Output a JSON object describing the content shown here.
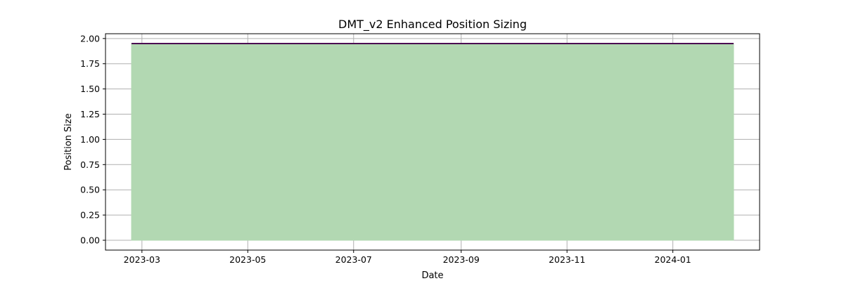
{
  "chart_data": {
    "type": "area",
    "title": "DMT_v2 Enhanced Position Sizing",
    "xlabel": "Date",
    "ylabel": "Position Size",
    "x_range": [
      "2023-02-08",
      "2024-02-20"
    ],
    "ylim": [
      -0.0975,
      2.0475
    ],
    "x_ticks": [
      "2023-03",
      "2023-05",
      "2023-07",
      "2023-09",
      "2023-11",
      "2024-01"
    ],
    "y_ticks": [
      "0.00",
      "0.25",
      "0.50",
      "0.75",
      "1.00",
      "1.25",
      "1.50",
      "1.75",
      "2.00"
    ],
    "grid": true,
    "series": [
      {
        "x": [
          "2023-02-23",
          "2024-02-05"
        ],
        "values": [
          1.95,
          1.95
        ],
        "line_color": "#4b0d52",
        "fill_color": "#b2d8b2"
      }
    ]
  }
}
